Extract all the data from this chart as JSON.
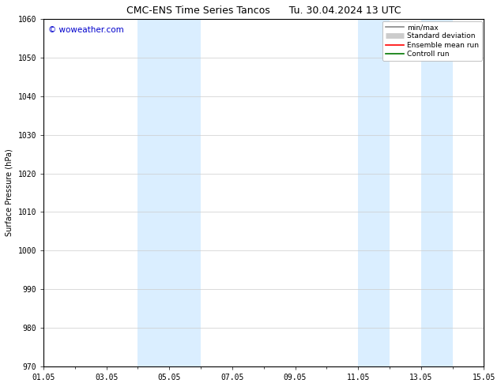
{
  "title": "CMC-ENS Time Series Tancos      Tu. 30.04.2024 13 UTC",
  "ylabel": "Surface Pressure (hPa)",
  "ylim": [
    970,
    1060
  ],
  "yticks": [
    970,
    980,
    990,
    1000,
    1010,
    1020,
    1030,
    1040,
    1050,
    1060
  ],
  "xtick_labels": [
    "01.05",
    "03.05",
    "05.05",
    "07.05",
    "09.05",
    "11.05",
    "13.05",
    "15.05"
  ],
  "xtick_positions": [
    0,
    2,
    4,
    6,
    8,
    10,
    12,
    14
  ],
  "x_total_days": 14,
  "shaded_bands": [
    {
      "xmin": 3.0,
      "xmax": 4.0,
      "color": "#daeeff"
    },
    {
      "xmin": 4.0,
      "xmax": 5.0,
      "color": "#daeeff"
    },
    {
      "xmin": 10.0,
      "xmax": 11.0,
      "color": "#daeeff"
    },
    {
      "xmin": 12.0,
      "xmax": 13.0,
      "color": "#daeeff"
    }
  ],
  "watermark": "© woweather.com",
  "watermark_color": "#0000cc",
  "legend_items": [
    {
      "label": "min/max",
      "color": "#888888",
      "lw": 1.2
    },
    {
      "label": "Standard deviation",
      "color": "#cccccc",
      "lw": 5
    },
    {
      "label": "Ensemble mean run",
      "color": "#ff0000",
      "lw": 1.2
    },
    {
      "label": "Controll run",
      "color": "#007700",
      "lw": 1.2
    }
  ],
  "background_color": "#ffffff",
  "plot_bg_color": "#ffffff",
  "grid_color": "#cccccc",
  "title_fontsize": 9,
  "label_fontsize": 7,
  "tick_fontsize": 7,
  "legend_fontsize": 6.5
}
